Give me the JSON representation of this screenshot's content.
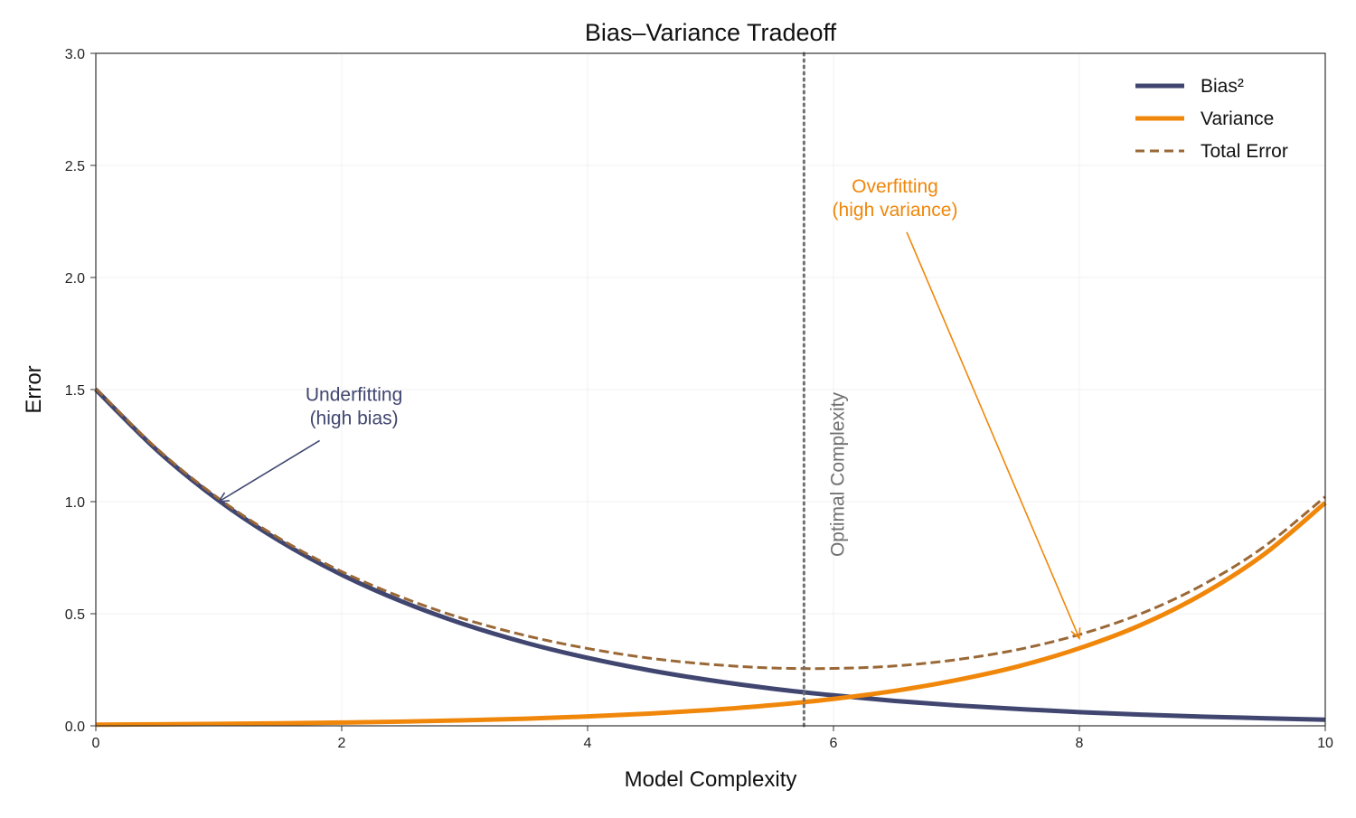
{
  "chart_data": {
    "type": "line",
    "title": "Bias–Variance Tradeoff",
    "xlabel": "Model Complexity",
    "ylabel": "Error",
    "xlim": [
      0,
      10
    ],
    "ylim": [
      0,
      3
    ],
    "xticks": [
      "0",
      "2",
      "4",
      "6",
      "8",
      "10"
    ],
    "yticks": [
      "0.0",
      "0.5",
      "1.0",
      "1.5",
      "2.0",
      "2.5",
      "3.0"
    ],
    "grid": true,
    "legend_position": "top-right",
    "x": [
      0,
      0.5,
      1,
      1.5,
      2,
      2.5,
      3,
      3.5,
      4,
      4.5,
      5,
      5.5,
      6,
      6.5,
      7,
      7.5,
      8,
      8.5,
      9,
      9.5,
      10
    ],
    "series": [
      {
        "name": "Bias²",
        "color": "#404670",
        "style": "solid",
        "values": [
          1.5,
          1.228,
          1.005,
          0.823,
          0.674,
          0.552,
          0.452,
          0.37,
          0.303,
          0.248,
          0.203,
          0.166,
          0.136,
          0.111,
          0.091,
          0.075,
          0.061,
          0.05,
          0.041,
          0.034,
          0.027
        ]
      },
      {
        "name": "Variance",
        "color": "#f0870a",
        "style": "solid",
        "values": [
          0.005,
          0.0065,
          0.0085,
          0.0111,
          0.0144,
          0.0189,
          0.0245,
          0.032,
          0.0416,
          0.0543,
          0.0707,
          0.0921,
          0.12,
          0.156,
          0.204,
          0.265,
          0.346,
          0.45,
          0.587,
          0.764,
          0.995
        ]
      },
      {
        "name": "Total Error",
        "color": "#9a6836",
        "style": "dashed",
        "values": [
          1.505,
          1.235,
          1.014,
          0.834,
          0.688,
          0.571,
          0.476,
          0.402,
          0.345,
          0.302,
          0.274,
          0.258,
          0.256,
          0.267,
          0.295,
          0.34,
          0.407,
          0.5,
          0.628,
          0.798,
          1.022
        ]
      }
    ],
    "optimal": {
      "x": 5.76,
      "label": "Optimal Complexity",
      "color": "#707070"
    },
    "annotations": [
      {
        "lines": [
          "Underfitting",
          "(high bias)"
        ],
        "color": "#404670",
        "text_at": [
          2.1,
          1.45
        ],
        "arrow_to": [
          1.0,
          1.0
        ]
      },
      {
        "lines": [
          "Overfitting",
          "(high variance)"
        ],
        "color": "#f0870a",
        "text_at": [
          6.5,
          2.38
        ],
        "arrow_to": [
          8.0,
          0.39
        ]
      }
    ]
  }
}
